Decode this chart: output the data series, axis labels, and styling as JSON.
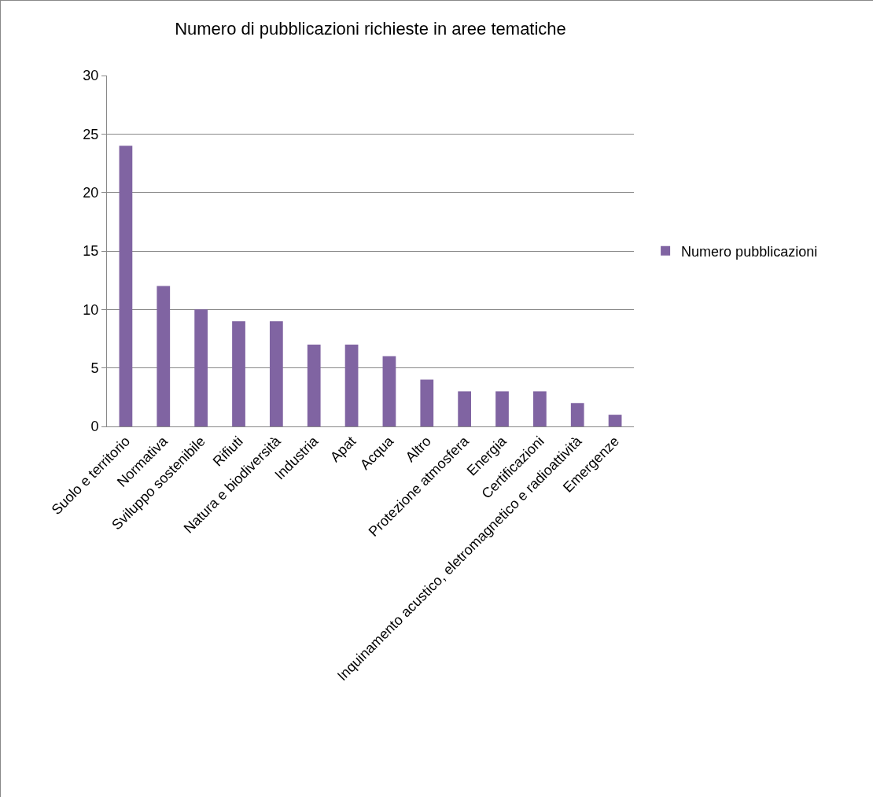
{
  "chart_data": {
    "type": "bar",
    "title": "Numero di pubblicazioni richieste in aree tematiche",
    "categories": [
      "Suolo e territorio",
      "Normativa",
      "Sviluppo sostenibile",
      "Rifiuti",
      "Natura e biodiversità",
      "Industria",
      "Apat",
      "Acqua",
      "Altro",
      "Protezione atmosfera",
      "Energia",
      "Certificazioni",
      "Inquinamento acustico, eletromagnetico e radioattività",
      "Emergenze"
    ],
    "series": [
      {
        "name": "Numero pubblicazioni",
        "color": "#8064a2",
        "values": [
          24,
          12,
          10,
          9,
          9,
          7,
          7,
          6,
          4,
          3,
          3,
          3,
          2,
          1
        ]
      }
    ],
    "ylim": [
      0,
      30
    ],
    "yticks": [
      0,
      5,
      10,
      15,
      20,
      25,
      30
    ],
    "grid": "y",
    "legend": "right"
  }
}
